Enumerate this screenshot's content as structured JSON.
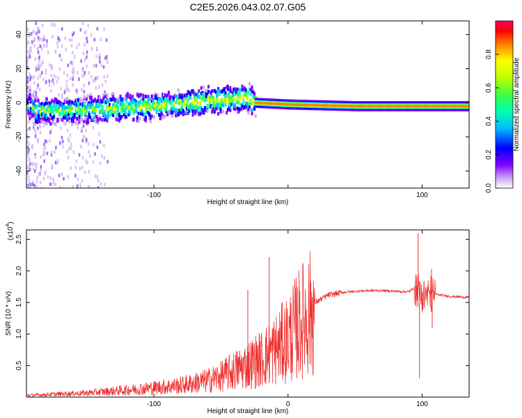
{
  "figure_title": "C2E5.2026.043.02.07.G05",
  "chart_data": [
    {
      "type": "heatmap",
      "xlabel": "Height of straight line (km)",
      "ylabel": "Frequency (Hz)",
      "xlim": [
        -195,
        135
      ],
      "ylim": [
        -50,
        48
      ],
      "x_ticks": [
        -100,
        0,
        100
      ],
      "x_tick_labels": [
        "-100",
        "",
        "100"
      ],
      "y_ticks": [
        -40,
        -20,
        0,
        20,
        40
      ],
      "y_tick_labels": [
        "-40",
        "-20",
        "0",
        "20",
        "40"
      ],
      "colorbar": {
        "label": "Normalized spectral amplitude",
        "range": [
          0,
          1
        ],
        "ticks": [
          0.0,
          0.2,
          0.4,
          0.6,
          0.8
        ],
        "tick_labels": [
          "0.0",
          "0.2",
          "0.4",
          "0.6",
          "0.8"
        ],
        "colormap": [
          "#ffffff",
          "#c8a8f0",
          "#8000ff",
          "#0000ff",
          "#00c0ff",
          "#00ffb0",
          "#40ff40",
          "#c0ff00",
          "#ffff00",
          "#ff8000",
          "#ff0000",
          "#ff0060"
        ]
      },
      "ridge": {
        "description": "spectral energy band around 0 Hz, noisy below ~-25 km, narrow and strong above",
        "centre_points": [
          [
            -190,
            -5
          ],
          [
            -150,
            -4
          ],
          [
            -100,
            -2
          ],
          [
            -60,
            1
          ],
          [
            -30,
            3
          ],
          [
            -25,
            0
          ],
          [
            0,
            -1
          ],
          [
            50,
            -2
          ],
          [
            135,
            -2
          ]
        ]
      }
    },
    {
      "type": "line",
      "xlabel": "Height of straight line (km)",
      "ylabel": "SNR (10 * v/v)",
      "scale_label": "(x10",
      "scale_exponent": "4",
      "scale_close": ")",
      "xlim": [
        -195,
        135
      ],
      "ylim": [
        0,
        2.65
      ],
      "x_ticks": [
        -100,
        0,
        100
      ],
      "x_tick_labels": [
        "-100",
        "0",
        "100"
      ],
      "y_ticks": [
        0.5,
        1.0,
        1.5,
        2.0,
        2.5
      ],
      "y_tick_labels": [
        "0.5",
        "1.0",
        "1.5",
        "2.0",
        "2.5"
      ],
      "series": [
        {
          "name": "SNR",
          "color": "#ee3030",
          "x": [
            -195,
            -150,
            -120,
            -100,
            -80,
            -60,
            -50,
            -40,
            -30,
            -20,
            -10,
            0,
            10,
            20,
            30,
            40,
            50,
            60,
            70,
            80,
            90,
            95,
            100,
            110,
            120,
            135
          ],
          "y": [
            0.03,
            0.07,
            0.12,
            0.16,
            0.2,
            0.28,
            0.35,
            0.45,
            0.55,
            0.65,
            0.8,
            1.0,
            1.3,
            1.5,
            1.62,
            1.66,
            1.68,
            1.69,
            1.69,
            1.68,
            1.67,
            1.75,
            1.62,
            1.63,
            1.6,
            1.58
          ]
        }
      ],
      "spikes": [
        {
          "x": -14,
          "y": 2.22
        },
        {
          "x": -30,
          "y": 1.7
        },
        {
          "x": 97,
          "y": 2.6
        },
        {
          "x": 98,
          "y": 0.3
        },
        {
          "x": 107,
          "y": 2.03
        },
        {
          "x": 107.5,
          "y": 1.1
        }
      ]
    }
  ]
}
